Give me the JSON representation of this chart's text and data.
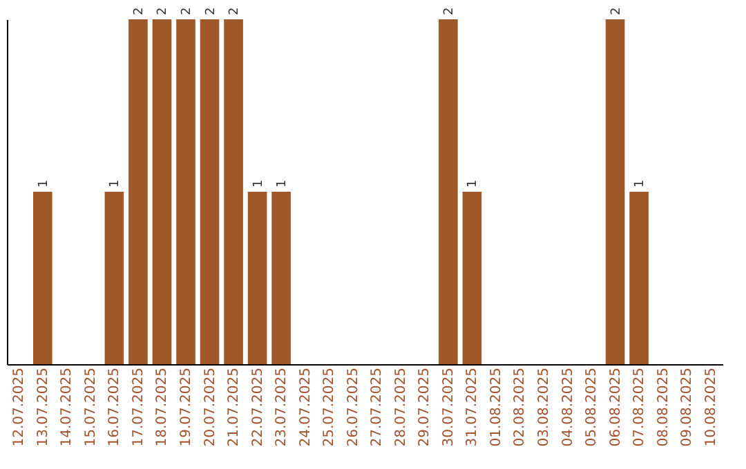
{
  "chart_data": {
    "type": "bar",
    "categories": [
      "12.07.2025",
      "13.07.2025",
      "14.07.2025",
      "15.07.2025",
      "16.07.2025",
      "17.07.2025",
      "18.07.2025",
      "19.07.2025",
      "20.07.2025",
      "21.07.2025",
      "22.07.2025",
      "23.07.2025",
      "24.07.2025",
      "25.07.2025",
      "26.07.2025",
      "27.07.2025",
      "28.07.2025",
      "29.07.2025",
      "30.07.2025",
      "31.07.2025",
      "01.08.2025",
      "02.08.2025",
      "03.08.2025",
      "04.08.2025",
      "05.08.2025",
      "06.08.2025",
      "07.08.2025",
      "08.08.2025",
      "09.08.2025",
      "10.08.2025"
    ],
    "values": [
      0,
      1,
      0,
      0,
      1,
      2,
      2,
      2,
      2,
      2,
      1,
      1,
      0,
      0,
      0,
      0,
      0,
      0,
      2,
      1,
      0,
      0,
      0,
      0,
      0,
      2,
      1,
      0,
      0,
      0
    ],
    "value_labels": [
      null,
      "1",
      null,
      null,
      "1",
      "2",
      "2",
      "2",
      "2",
      "2",
      "1",
      "1",
      null,
      null,
      null,
      null,
      null,
      null,
      "2",
      "1",
      null,
      null,
      null,
      null,
      null,
      "2",
      "1",
      null,
      null,
      null
    ],
    "color": "#a0582a",
    "grid": false
  }
}
